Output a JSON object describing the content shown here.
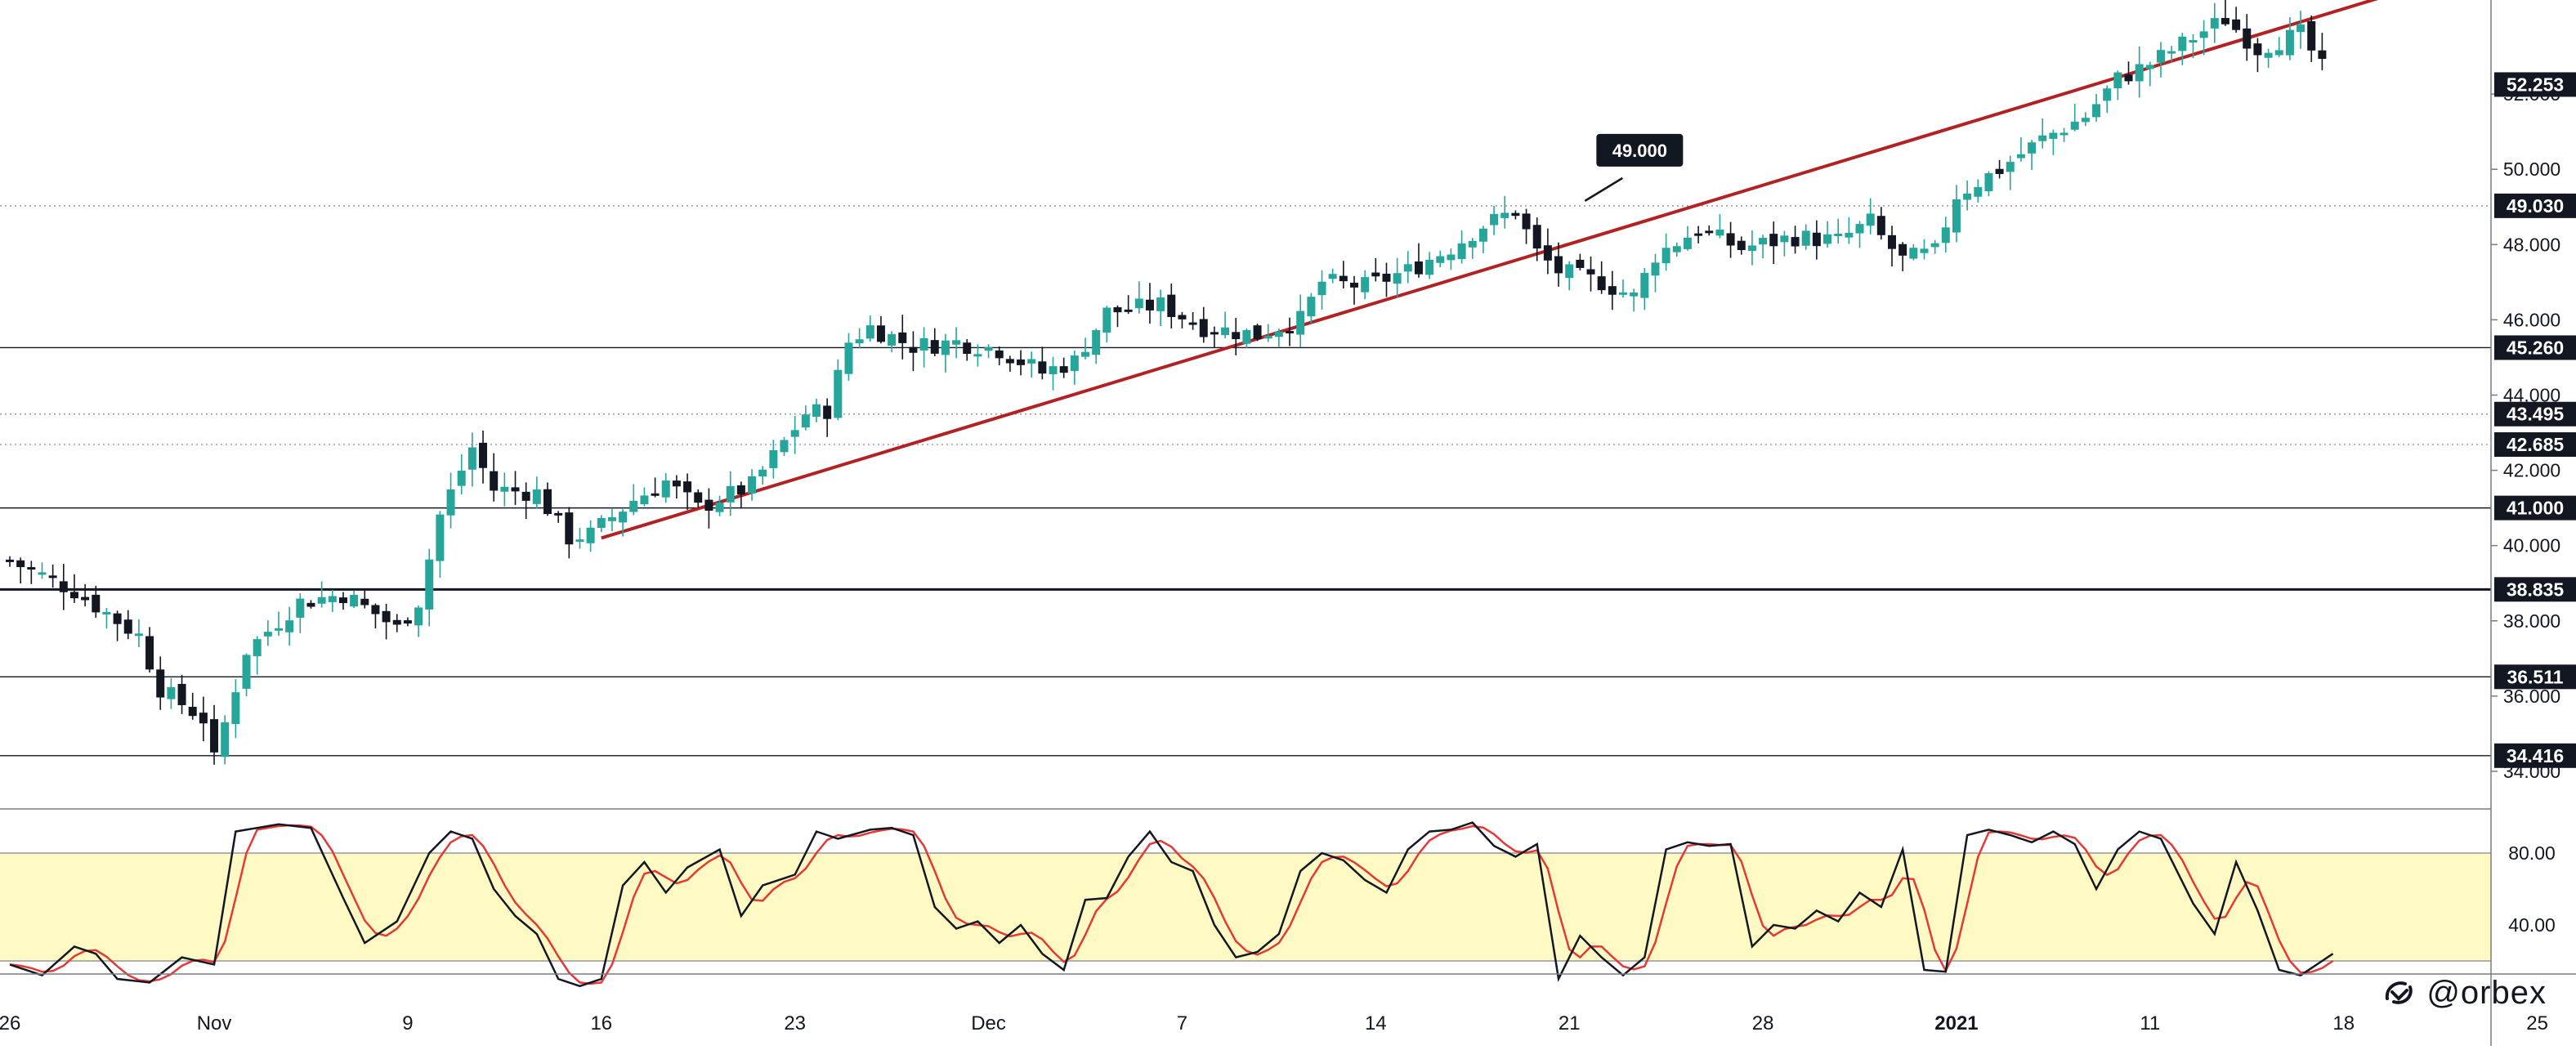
{
  "chart_data": {
    "type": "candlestick",
    "ylim": [
      33.0,
      54.5
    ],
    "price_ticks": [
      "52.000",
      "50.000",
      "48.000",
      "46.000",
      "44.000",
      "42.000",
      "40.000",
      "38.000",
      "36.000",
      "34.000"
    ],
    "x_labels": [
      {
        "label": "26",
        "index": 0,
        "bold": false
      },
      {
        "label": "Nov",
        "index": 19,
        "bold": false
      },
      {
        "label": "9",
        "index": 37,
        "bold": false
      },
      {
        "label": "16",
        "index": 55,
        "bold": false
      },
      {
        "label": "23",
        "index": 73,
        "bold": false
      },
      {
        "label": "Dec",
        "index": 91,
        "bold": false
      },
      {
        "label": "7",
        "index": 109,
        "bold": false
      },
      {
        "label": "14",
        "index": 127,
        "bold": false
      },
      {
        "label": "21",
        "index": 145,
        "bold": false
      },
      {
        "label": "28",
        "index": 163,
        "bold": false
      },
      {
        "label": "2021",
        "index": 181,
        "bold": true
      },
      {
        "label": "11",
        "index": 199,
        "bold": false
      },
      {
        "label": "18",
        "index": 217,
        "bold": false
      },
      {
        "label": "25",
        "index": 235,
        "bold": false
      }
    ],
    "candle_count": 216,
    "close_anchors": [
      [
        0,
        39.6
      ],
      [
        6,
        38.8
      ],
      [
        12,
        37.6
      ],
      [
        14,
        36.2
      ],
      [
        18,
        35.4
      ],
      [
        19,
        34.3
      ],
      [
        22,
        37.2
      ],
      [
        27,
        38.5
      ],
      [
        31,
        38.7
      ],
      [
        34,
        38.2
      ],
      [
        36,
        37.8
      ],
      [
        38,
        38.5
      ],
      [
        40,
        40.8
      ],
      [
        43,
        42.6
      ],
      [
        45,
        41.5
      ],
      [
        49,
        41.4
      ],
      [
        52,
        40.2
      ],
      [
        54,
        40.3
      ],
      [
        58,
        41.2
      ],
      [
        61,
        41.7
      ],
      [
        64,
        41.0
      ],
      [
        69,
        41.6
      ],
      [
        74,
        43.5
      ],
      [
        76,
        43.6
      ],
      [
        78,
        45.4
      ],
      [
        80,
        45.8
      ],
      [
        84,
        45.3
      ],
      [
        88,
        45.4
      ],
      [
        92,
        45.2
      ],
      [
        96,
        44.6
      ],
      [
        99,
        44.9
      ],
      [
        102,
        46.2
      ],
      [
        107,
        46.4
      ],
      [
        111,
        45.8
      ],
      [
        116,
        45.6
      ],
      [
        120,
        46.0
      ],
      [
        122,
        47.0
      ],
      [
        126,
        46.9
      ],
      [
        130,
        47.3
      ],
      [
        134,
        47.9
      ],
      [
        137,
        48.5
      ],
      [
        140,
        48.9
      ],
      [
        142,
        47.8
      ],
      [
        144,
        47.3
      ],
      [
        148,
        47.0
      ],
      [
        151,
        46.6
      ],
      [
        153,
        47.7
      ],
      [
        157,
        48.4
      ],
      [
        161,
        47.9
      ],
      [
        166,
        48.2
      ],
      [
        170,
        48.1
      ],
      [
        173,
        48.6
      ],
      [
        174,
        48.2
      ],
      [
        176,
        47.6
      ],
      [
        179,
        47.8
      ],
      [
        181,
        49.3
      ],
      [
        185,
        50.0
      ],
      [
        189,
        50.8
      ],
      [
        193,
        51.4
      ],
      [
        196,
        52.4
      ],
      [
        199,
        52.8
      ],
      [
        203,
        53.5
      ],
      [
        206,
        54.0
      ],
      [
        209,
        53.2
      ],
      [
        213,
        53.6
      ],
      [
        215,
        52.7
      ],
      [
        217,
        52.2
      ],
      [
        218,
        52.25
      ]
    ],
    "levels": [
      {
        "label": "49.030",
        "value": 49.03,
        "style": "dotted"
      },
      {
        "label": "45.260",
        "value": 45.26,
        "style": "solid"
      },
      {
        "label": "43.495",
        "value": 43.495,
        "style": "dotted"
      },
      {
        "label": "42.685",
        "value": 42.685,
        "style": "dotted"
      },
      {
        "label": "41.000",
        "value": 41.0,
        "style": "solid"
      },
      {
        "label": "38.835",
        "value": 38.835,
        "style": "solid-bold"
      },
      {
        "label": "36.511",
        "value": 36.511,
        "style": "solid"
      },
      {
        "label": "34.416",
        "value": 34.416,
        "style": "solid"
      }
    ],
    "last_price": {
      "label": "52.253",
      "value": 52.253
    },
    "trendline": {
      "from": {
        "index": 55,
        "price": 40.2
      },
      "to": {
        "index": 222,
        "price": 54.7
      },
      "color": "#b22222"
    },
    "annotation": {
      "label": "49.000",
      "index": 146,
      "price": 49.03
    },
    "stochastic": {
      "ylim": [
        0,
        100
      ],
      "ticks": [
        "80.00",
        "40.00"
      ],
      "band": [
        20,
        80
      ],
      "band_color": "#fff9c4",
      "k_color": "#131722",
      "d_color": "#e53935",
      "anchors": [
        [
          0,
          18
        ],
        [
          3,
          12
        ],
        [
          6,
          28
        ],
        [
          8,
          24
        ],
        [
          10,
          10
        ],
        [
          13,
          8
        ],
        [
          16,
          22
        ],
        [
          19,
          18
        ],
        [
          21,
          92
        ],
        [
          25,
          96
        ],
        [
          28,
          94
        ],
        [
          31,
          55
        ],
        [
          33,
          30
        ],
        [
          36,
          42
        ],
        [
          39,
          80
        ],
        [
          41,
          92
        ],
        [
          43,
          88
        ],
        [
          45,
          60
        ],
        [
          47,
          45
        ],
        [
          49,
          35
        ],
        [
          51,
          10
        ],
        [
          53,
          6
        ],
        [
          55,
          10
        ],
        [
          57,
          62
        ],
        [
          59,
          75
        ],
        [
          61,
          58
        ],
        [
          63,
          72
        ],
        [
          66,
          82
        ],
        [
          68,
          45
        ],
        [
          70,
          62
        ],
        [
          73,
          68
        ],
        [
          75,
          92
        ],
        [
          77,
          88
        ],
        [
          80,
          93
        ],
        [
          82,
          94
        ],
        [
          84,
          90
        ],
        [
          86,
          50
        ],
        [
          88,
          38
        ],
        [
          90,
          42
        ],
        [
          92,
          30
        ],
        [
          94,
          40
        ],
        [
          96,
          24
        ],
        [
          98,
          15
        ],
        [
          100,
          54
        ],
        [
          102,
          55
        ],
        [
          104,
          78
        ],
        [
          106,
          92
        ],
        [
          108,
          75
        ],
        [
          110,
          70
        ],
        [
          112,
          40
        ],
        [
          114,
          22
        ],
        [
          116,
          25
        ],
        [
          118,
          35
        ],
        [
          120,
          70
        ],
        [
          122,
          80
        ],
        [
          124,
          76
        ],
        [
          126,
          65
        ],
        [
          128,
          58
        ],
        [
          130,
          82
        ],
        [
          132,
          92
        ],
        [
          134,
          93
        ],
        [
          136,
          97
        ],
        [
          138,
          84
        ],
        [
          140,
          78
        ],
        [
          142,
          85
        ],
        [
          144,
          10
        ],
        [
          146,
          34
        ],
        [
          148,
          22
        ],
        [
          150,
          12
        ],
        [
          152,
          22
        ],
        [
          154,
          82
        ],
        [
          156,
          86
        ],
        [
          158,
          84
        ],
        [
          160,
          85
        ],
        [
          162,
          28
        ],
        [
          164,
          40
        ],
        [
          166,
          38
        ],
        [
          168,
          48
        ],
        [
          170,
          42
        ],
        [
          172,
          58
        ],
        [
          174,
          50
        ],
        [
          176,
          82
        ],
        [
          178,
          15
        ],
        [
          180,
          14
        ],
        [
          182,
          90
        ],
        [
          184,
          93
        ],
        [
          186,
          90
        ],
        [
          188,
          86
        ],
        [
          190,
          92
        ],
        [
          192,
          85
        ],
        [
          194,
          60
        ],
        [
          196,
          82
        ],
        [
          198,
          92
        ],
        [
          200,
          88
        ],
        [
          203,
          52
        ],
        [
          205,
          35
        ],
        [
          207,
          75
        ],
        [
          209,
          48
        ],
        [
          211,
          15
        ],
        [
          213,
          12
        ],
        [
          216,
          24
        ]
      ]
    }
  }
}
